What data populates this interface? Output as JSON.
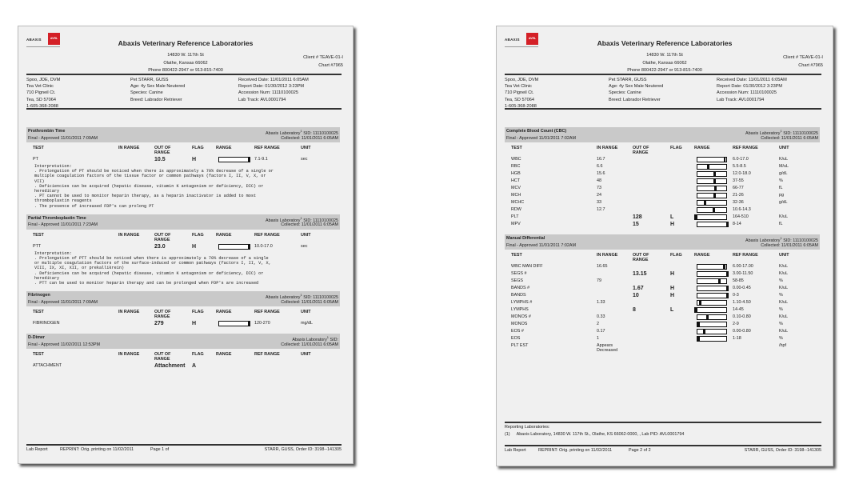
{
  "logo": {
    "brand": "ABAXIS",
    "mark": "AVRL"
  },
  "columns": [
    "TEST",
    "IN RANGE",
    "OUT OF RANGE",
    "FLAG",
    "RANGE",
    "REF RANGE",
    "UNIT"
  ],
  "pages": [
    {
      "header": {
        "lab_name": "Abaxis Veterinary Reference Laboratories",
        "address": [
          "14830 W. 117th St",
          "Olathe, Kansas 66062",
          "Phone 800422-2947 or 913-815-7400"
        ],
        "client": "Client # TEAVE-01-I",
        "chart": "Chart #7965"
      },
      "info": {
        "doctor": [
          "Spoo, JDE, DVM",
          "Tea Vet Clinic",
          "710 Pigneil Ct.",
          "Tea, SD 57064",
          "1-605-368-2088"
        ],
        "patient": [
          "Pet STARR, GUSS",
          "Age: 4y  Sex Male Neutered",
          "Species: Canine",
          "Breed: Labrador Retriever"
        ],
        "report": [
          "Received Date: 11/01/2011 6:05AM",
          "Report Date: 01/30/2012 3:23PM",
          "Accession Num: 11110100025",
          "Lab Track: AVL0001794"
        ]
      },
      "sections": [
        {
          "title": "Prothrombin Time",
          "status": "Final - Approved 11/01/2011 7:09AM",
          "lab": "Abaxis Laboratory",
          "lab_ref": "1",
          "sid": " SID: 11110100025",
          "collected": "Collected: 11/01/2011 6:05AM",
          "rows": [
            {
              "test": "PT",
              "in_range": "",
              "out_of_range": "10.5",
              "flag": "H",
              "ref_range": "7.1-9.1",
              "unit": "sec"
            }
          ],
          "interpretation": [
            "Interpretation:",
            ". Prolongation of PT should be noticed when there is approximately a 70% decrease of a single or",
            "multiple coagulation factors of the tissue factor or common pathways (factors I, II, V, X, or",
            "VII)",
            ". Deficiencies can be acquired (hepatic disease, vitamin K antagonism or deficiency, DIC) or",
            "hereditary",
            ". PT cannot be used to monitor heparin therapy, as a heparin inactivator is added to most",
            "thromboplastin reagents",
            ". The presence of increased FDP's can prolong PT"
          ]
        },
        {
          "title": "Partial Thromboplastin Time",
          "status": "Final - Approved 11/01/2011 7:23AM",
          "lab": "Abaxis Laboratory",
          "lab_ref": "1",
          "sid": " SID: 11110100025",
          "collected": "Collected: 11/01/2011 6:05AM",
          "rows": [
            {
              "test": "PTT",
              "in_range": "",
              "out_of_range": "23.0",
              "flag": "H",
              "ref_range": "10.0-17.0",
              "unit": "sec"
            }
          ],
          "interpretation": [
            "Interpretation:",
            ". Prolongation of PTT should be noticed when there is approximately a 70% decrease of a single",
            "or multiple coagulation factors of the surface-induced or common pathways (factors I, II, V, X,",
            "VIII, IX, XI, XII, or prekallikrein)",
            ". Deficiencies can be acquired (hepatic disease, vitamin K antagonism or deficiency, DIC) or",
            "hereditary",
            ". PTT can be used to monitor heparin therapy and can be prolonged when FDP's are increased"
          ]
        },
        {
          "title": "Fibrinogen",
          "status": "Final - Approved 11/01/2011 7:09AM",
          "lab": "Abaxis Laboratory",
          "lab_ref": "1",
          "sid": " SID: 11110100025",
          "collected": "Collected: 11/01/2011 6:05AM",
          "rows": [
            {
              "test": "FIBRINOGEN",
              "in_range": "",
              "out_of_range": "279",
              "flag": "H",
              "ref_range": "120-270",
              "unit": "mg/dL"
            }
          ]
        },
        {
          "title": "D-Dimer",
          "status": "Final - Approved 11/02/2011 12:53PM",
          "lab": "Abaxis Laboratory",
          "lab_ref": "1",
          "sid": " SID:",
          "collected": "Collected: 11/01/2011 6:05AM",
          "rows": [
            {
              "test": "ATTACHMENT",
              "in_range": "",
              "out_of_range": "Attachment",
              "flag": "A",
              "ref_range": "",
              "unit": ""
            }
          ]
        }
      ],
      "footer": {
        "left": "Lab Report",
        "reprint": "REPRINT: Orig. printing on 11/02/2011",
        "page": "Page 1 of",
        "order": "STARR, GUSS, Order ID: 3198--141305"
      }
    },
    {
      "header": {
        "lab_name": "Abaxis Veterinary Reference Laboratories",
        "address": [
          "14830 W. 117th St",
          "Olathe, Kansas 66062",
          "Phone 800422-2947 or 913-815-7400"
        ],
        "client": "Client # TEAVE-01-I",
        "chart": "Chart #7965"
      },
      "info": {
        "doctor": [
          "Spoo, JDE, DVM",
          "Tea Vet Clinic",
          "710 Pigneil Ct.",
          "Tea, SD 57064",
          "1-605-368-2088"
        ],
        "patient": [
          "Pet STARR, GUSS",
          "Age: 4y  Sex Male Neutered",
          "Species: Canine",
          "Breed: Labrador Retriever"
        ],
        "report": [
          "Received Date: 11/01/2011 6:05AM",
          "Report Date: 01/30/2012 3:23PM",
          "Accession Num: 11110100025",
          "Lab Track: AVL0001794"
        ]
      },
      "sections": [
        {
          "title": "Complete Blood Count (CBC)",
          "status": "Final - Approved 11/01/2011 7:02AM",
          "lab": "Abaxis Laboratory",
          "lab_ref": "1",
          "sid": " SID: 11110100025",
          "collected": "Collected: 11/01/2011 6:05AM",
          "rows": [
            {
              "test": "WBC",
              "in_range": "16.7",
              "out_of_range": "",
              "flag": "",
              "ref_range": "6.0-17.0",
              "unit": "K/uL"
            },
            {
              "test": "RBC",
              "in_range": "6.6",
              "out_of_range": "",
              "flag": "",
              "ref_range": "5.5-8.5",
              "unit": "M/uL"
            },
            {
              "test": "HGB",
              "in_range": "15.6",
              "out_of_range": "",
              "flag": "",
              "ref_range": "12.0-18.0",
              "unit": "g/dL"
            },
            {
              "test": "HCT",
              "in_range": "48",
              "out_of_range": "",
              "flag": "",
              "ref_range": "37-55",
              "unit": "%"
            },
            {
              "test": "MCV",
              "in_range": "73",
              "out_of_range": "",
              "flag": "",
              "ref_range": "66-77",
              "unit": "fL"
            },
            {
              "test": "MCH",
              "in_range": "24",
              "out_of_range": "",
              "flag": "",
              "ref_range": "21-26",
              "unit": "pg"
            },
            {
              "test": "MCHC",
              "in_range": "33",
              "out_of_range": "",
              "flag": "",
              "ref_range": "32-36",
              "unit": "g/dL"
            },
            {
              "test": "RDW",
              "in_range": "12.7",
              "out_of_range": "",
              "flag": "",
              "ref_range": "10.6-14.3",
              "unit": ""
            },
            {
              "test": "PLT",
              "in_range": "",
              "out_of_range": "128",
              "flag": "L",
              "ref_range": "164-510",
              "unit": "K/uL"
            },
            {
              "test": "MPV",
              "in_range": "",
              "out_of_range": "15",
              "flag": "H",
              "ref_range": "8-14",
              "unit": "fL"
            }
          ]
        },
        {
          "title": "Manual Differential",
          "status": "Final - Approved 11/01/2011 7:02AM",
          "lab": "Abaxis Laboratory",
          "lab_ref": "1",
          "sid": " SID: 11110100025",
          "collected": "Collected: 11/01/2011 6:05AM",
          "rows": [
            {
              "test": "WBC MAN DIFF",
              "in_range": "16.65",
              "out_of_range": "",
              "flag": "",
              "ref_range": "6.00-17.00",
              "unit": "K/uL"
            },
            {
              "test": "SEGS #",
              "in_range": "",
              "out_of_range": "13.15",
              "flag": "H",
              "ref_range": "3.00-11.50",
              "unit": "K/uL"
            },
            {
              "test": "SEGS",
              "in_range": "79",
              "out_of_range": "",
              "flag": "",
              "ref_range": "58-85",
              "unit": "%"
            },
            {
              "test": "BANDS #",
              "in_range": "",
              "out_of_range": "1.67",
              "flag": "H",
              "ref_range": "0.00-0.45",
              "unit": "K/uL"
            },
            {
              "test": "BANDS",
              "in_range": "",
              "out_of_range": "10",
              "flag": "H",
              "ref_range": "0-3",
              "unit": "%"
            },
            {
              "test": "LYMPHS #",
              "in_range": "1.33",
              "out_of_range": "",
              "flag": "",
              "ref_range": "1.10-4.50",
              "unit": "K/uL"
            },
            {
              "test": "LYMPHS",
              "in_range": "",
              "out_of_range": "8",
              "flag": "L",
              "ref_range": "14-45",
              "unit": "%"
            },
            {
              "test": "MONOS #",
              "in_range": "0.33",
              "out_of_range": "",
              "flag": "",
              "ref_range": "0.10-0.80",
              "unit": "K/uL"
            },
            {
              "test": "MONOS",
              "in_range": "2",
              "out_of_range": "",
              "flag": "",
              "ref_range": "2-9",
              "unit": "%"
            },
            {
              "test": "EOS #",
              "in_range": "0.17",
              "out_of_range": "",
              "flag": "",
              "ref_range": "0.00-0.80",
              "unit": "K/uL"
            },
            {
              "test": "EOS",
              "in_range": "1",
              "out_of_range": "",
              "flag": "",
              "ref_range": "1-18",
              "unit": "%"
            },
            {
              "test": "PLT EST",
              "in_range": "Appears Decreased",
              "out_of_range": "",
              "flag": "",
              "ref_range": "",
              "unit": "/hpf"
            }
          ]
        }
      ],
      "reporting": {
        "title": "Reporting Laboratories:",
        "ref": "(1)",
        "line": "Abaxis Laboratory, 14830 W. 117th St., Olathe, KS  66062-0000, , Lab PID: AVL0001794"
      },
      "footer": {
        "left": "Lab Report",
        "reprint": "REPRINT: Orig. printing on 11/02/2011",
        "page": "Page 2 of 2",
        "order": "STARR, GUSS, Order ID: 3198--141305"
      }
    }
  ]
}
